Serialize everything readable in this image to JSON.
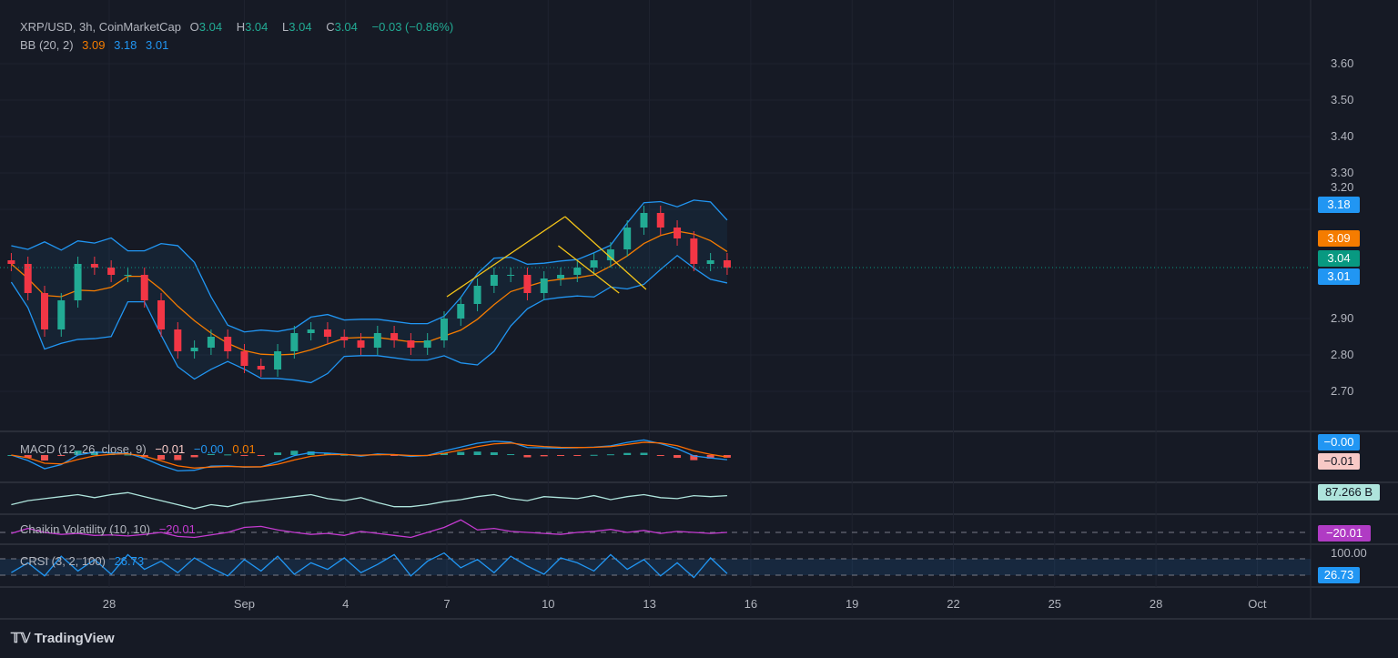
{
  "header": {
    "symbol": "XRP/USD, 3h, CoinMarketCap",
    "o_label": "O",
    "o": "3.04",
    "h_label": "H",
    "h": "3.04",
    "l_label": "L",
    "l": "3.04",
    "c_label": "C",
    "c": "3.04",
    "change": "−0.03 (−0.86%)",
    "bb_label": "BB (20, 2)",
    "bb_basis": "3.09",
    "bb_upper": "3.18",
    "bb_lower": "3.01"
  },
  "macd": {
    "label": "MACD (12, 26, close, 9)",
    "hist": "−0.01",
    "macd": "−0.00",
    "signal": "0.01"
  },
  "volume": {
    "value": "87.266 B"
  },
  "chaikin": {
    "label": "Chaikin Volatility (10, 10)",
    "value": "−20.01"
  },
  "crsi": {
    "label": "CRSI (3, 2, 100)",
    "value": "26.73",
    "top": "100.00"
  },
  "tags": {
    "bb_upper": "3.18",
    "bb_basis": "3.09",
    "price": "3.04",
    "bb_lower": "3.01",
    "macd": "−0.00",
    "hist": "−0.01",
    "volume": "87.266 B",
    "chaikin": "−20.01",
    "crsi": "26.73"
  },
  "brand": "TradingView",
  "chart_data": {
    "type": "candlestick",
    "title": "XRP/USD, 3h, CoinMarketCap",
    "ylim": [
      2.65,
      3.65
    ],
    "y_ticks": [
      "3.60",
      "3.50",
      "3.40",
      "3.30",
      "3.20",
      "2.90",
      "2.80",
      "2.70"
    ],
    "y_tick_values": [
      3.6,
      3.5,
      3.4,
      3.3,
      3.2,
      2.9,
      2.8,
      2.7
    ],
    "x_ticks": [
      "28",
      "Sep",
      "4",
      "7",
      "10",
      "13",
      "16",
      "19",
      "22",
      "25",
      "28",
      "Oct"
    ],
    "x_tick_days": [
      0,
      4,
      7,
      10,
      13,
      16,
      19,
      22,
      25,
      28,
      31,
      34
    ],
    "start_day": -2.9,
    "end_day": 18.3,
    "closes": [
      3.05,
      2.97,
      2.87,
      2.95,
      3.05,
      3.04,
      3.02,
      3.02,
      2.95,
      2.87,
      2.81,
      2.82,
      2.85,
      2.81,
      2.77,
      2.76,
      2.81,
      2.86,
      2.87,
      2.85,
      2.84,
      2.82,
      2.86,
      2.84,
      2.82,
      2.84,
      2.9,
      2.94,
      2.99,
      3.02,
      3.02,
      2.97,
      3.01,
      3.02,
      3.04,
      3.06,
      3.09,
      3.15,
      3.19,
      3.15,
      3.12,
      3.05,
      3.06,
      3.04
    ],
    "trendlines": [
      [
        [
          10.0,
          2.96
        ],
        [
          13.5,
          3.18
        ]
      ],
      [
        [
          13.5,
          3.18
        ],
        [
          15.9,
          2.98
        ]
      ],
      [
        [
          13.3,
          3.1
        ],
        [
          15.1,
          2.97
        ]
      ]
    ],
    "colors": {
      "up": "#22ab94",
      "down": "#f23645",
      "bb": "#2196f3",
      "basis": "#f57c00",
      "trend": "#f5c518"
    },
    "volume_series": [
      40,
      44,
      46,
      48,
      50,
      47,
      50,
      52,
      48,
      44,
      40,
      36,
      40,
      38,
      42,
      44,
      46,
      48,
      50,
      46,
      44,
      47,
      42,
      38,
      38,
      40,
      43,
      45,
      48,
      50,
      46,
      44,
      48,
      47,
      46,
      49,
      45,
      48,
      50,
      47,
      46,
      49,
      48,
      49
    ],
    "chaikin_series": [
      -22,
      -12,
      -20,
      -24,
      -22,
      -26,
      -25,
      -27,
      -24,
      -20,
      -28,
      -30,
      -25,
      -20,
      -10,
      -8,
      -15,
      -20,
      -24,
      -22,
      -26,
      -18,
      -22,
      -26,
      -30,
      -20,
      -10,
      5,
      -15,
      -12,
      -18,
      -20,
      -22,
      -24,
      -20,
      -18,
      -14,
      -20,
      -16,
      -22,
      -18,
      -20,
      -22,
      -20
    ],
    "crsi_series": [
      30,
      60,
      20,
      80,
      35,
      70,
      25,
      85,
      40,
      65,
      30,
      75,
      45,
      20,
      70,
      35,
      80,
      25,
      60,
      40,
      75,
      30,
      55,
      85,
      20,
      65,
      90,
      45,
      70,
      30,
      80,
      50,
      25,
      75,
      60,
      35,
      85,
      40,
      70,
      20,
      60,
      15,
      75,
      27
    ]
  }
}
